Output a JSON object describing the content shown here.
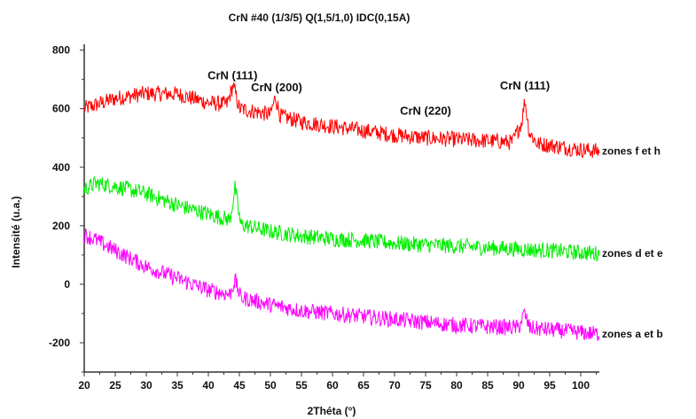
{
  "chart_data": {
    "type": "line",
    "title": "CrN #40 (1/3/5) Q(1,5/1,0) IDC(0,15A)",
    "xlabel": "2Théta (°)",
    "ylabel": "Intensité (u.a.)",
    "xlim": [
      20,
      103
    ],
    "ylim": [
      -300,
      820
    ],
    "xticks": [
      20,
      25,
      30,
      35,
      40,
      45,
      50,
      55,
      60,
      65,
      70,
      75,
      80,
      85,
      90,
      95,
      100
    ],
    "yticks": [
      -200,
      0,
      200,
      400,
      600,
      800
    ],
    "grid": false,
    "series": [
      {
        "name": "zones f et h",
        "color": "#ff0000",
        "x": [
          20,
          25,
          30,
          35,
          40,
          43,
          44,
          45,
          50,
          50.8,
          51.6,
          55,
          60,
          65,
          70,
          75,
          80,
          85,
          89,
          90.5,
          91,
          91.7,
          93,
          95,
          100,
          103
        ],
        "y": [
          600,
          635,
          652,
          650,
          620,
          615,
          680,
          600,
          580,
          640,
          575,
          555,
          540,
          525,
          510,
          500,
          495,
          490,
          485,
          555,
          630,
          520,
          480,
          475,
          460,
          455
        ]
      },
      {
        "name": "zones d et e",
        "color": "#00ee00",
        "x": [
          20,
          22,
          25,
          30,
          35,
          40,
          43.5,
          44.3,
          45.2,
          50,
          55,
          60,
          65,
          70,
          75,
          80,
          85,
          90,
          95,
          100,
          103
        ],
        "y": [
          325,
          345,
          335,
          310,
          270,
          240,
          220,
          330,
          205,
          180,
          165,
          155,
          150,
          140,
          135,
          130,
          125,
          120,
          115,
          108,
          105
        ]
      },
      {
        "name": "zones a et b",
        "color": "#ff00ff",
        "x": [
          20,
          22,
          25,
          30,
          35,
          40,
          43.5,
          44.3,
          45.2,
          50,
          55,
          60,
          65,
          70,
          75,
          80,
          85,
          90,
          90.9,
          91.8,
          95,
          100,
          103
        ],
        "y": [
          170,
          150,
          115,
          60,
          20,
          -20,
          -35,
          15,
          -45,
          -70,
          -90,
          -100,
          -110,
          -120,
          -130,
          -140,
          -145,
          -148,
          -100,
          -150,
          -155,
          -165,
          -170
        ]
      }
    ],
    "annotations": [
      {
        "text": "CrN (111)",
        "x": 43.9,
        "y": 700
      },
      {
        "text": "CrN (200)",
        "x": 51,
        "y": 660
      },
      {
        "text": "CrN (220)",
        "x": 75,
        "y": 580
      },
      {
        "text": "CrN (111)",
        "x": 91,
        "y": 665
      }
    ]
  }
}
